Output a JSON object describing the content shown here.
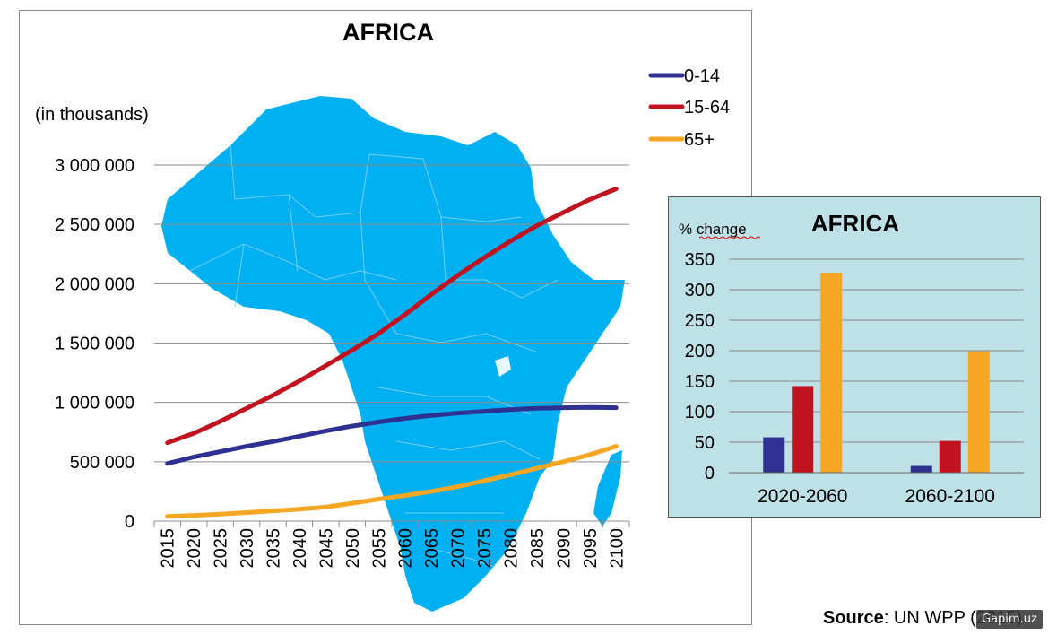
{
  "colors": {
    "series_0_14": "#2e3192",
    "series_15_64": "#c1121f",
    "series_65_plus": "#f5a623",
    "map_fill": "#00b0f0",
    "inset_bg": "#bde1e6",
    "gridline": "#8c8c8c"
  },
  "icons": {
    "map": "africa-map-icon"
  },
  "source": {
    "label": "Source",
    "text": ": UN WPP (2015)"
  },
  "watermark": "Gapim.uz",
  "chart_data": [
    {
      "type": "line",
      "title": "AFRICA",
      "ylabel": "(in thousands)",
      "x": [
        "2015",
        "2020",
        "2025",
        "2030",
        "2035",
        "2040",
        "2045",
        "2050",
        "2055",
        "2060",
        "2065",
        "2070",
        "2075",
        "2080",
        "2085",
        "2090",
        "2095",
        "2100"
      ],
      "series": [
        {
          "name": "0-14",
          "values": [
            485000,
            540000,
            585000,
            630000,
            670000,
            715000,
            760000,
            800000,
            835000,
            865000,
            890000,
            910000,
            925000,
            940000,
            950000,
            955000,
            958000,
            955000
          ]
        },
        {
          "name": "15-64",
          "values": [
            660000,
            740000,
            840000,
            950000,
            1060000,
            1180000,
            1310000,
            1440000,
            1580000,
            1740000,
            1910000,
            2070000,
            2220000,
            2360000,
            2490000,
            2600000,
            2710000,
            2800000
          ]
        },
        {
          "name": "65+",
          "values": [
            40000,
            48000,
            58000,
            72000,
            86000,
            100000,
            118000,
            150000,
            185000,
            215000,
            250000,
            290000,
            340000,
            390000,
            445000,
            500000,
            560000,
            630000
          ]
        }
      ],
      "ylim": [
        0,
        3000000
      ],
      "yticks": [
        0,
        500000,
        1000000,
        1500000,
        2000000,
        2500000,
        3000000
      ],
      "ytick_labels": [
        "0",
        "500 000",
        "1 000 000",
        "1 500 000",
        "2 000 000",
        "2 500 000",
        "3 000 000"
      ],
      "grid": true,
      "legend_position": "top-right"
    },
    {
      "type": "bar",
      "title": "AFRICA",
      "ylabel": "% change",
      "categories": [
        "2020-2060",
        "2060-2100"
      ],
      "series": [
        {
          "name": "0-14",
          "values": [
            58,
            11
          ]
        },
        {
          "name": "15-64",
          "values": [
            142,
            52
          ]
        },
        {
          "name": "65+",
          "values": [
            328,
            199
          ]
        }
      ],
      "ylim": [
        0,
        350
      ],
      "yticks": [
        0,
        50,
        100,
        150,
        200,
        250,
        300,
        350
      ],
      "ytick_labels": [
        "0",
        "50",
        "100",
        "150",
        "200",
        "250",
        "300",
        "350"
      ],
      "grid": true
    }
  ]
}
